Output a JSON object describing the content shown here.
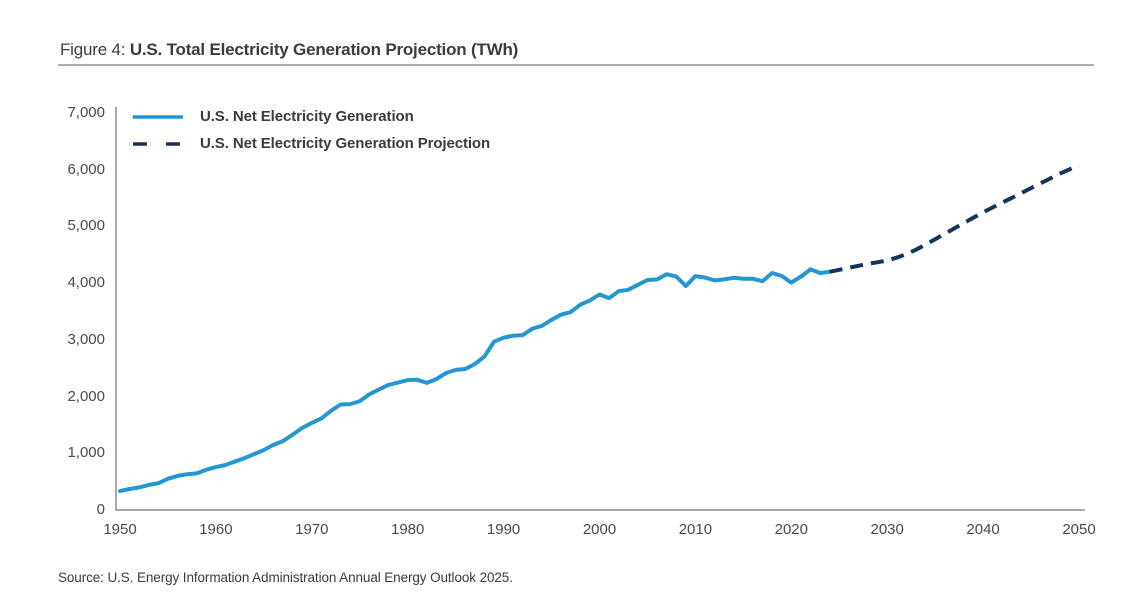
{
  "title": {
    "prefix": "Figure 4: ",
    "main": "U.S. Total Electricity Generation Projection (TWh)"
  },
  "source": "Source: U.S. Energy Information Administration Annual Energy Outlook 2025.",
  "colors": {
    "historical_line": "#2397d4",
    "projection_line": "#14345b",
    "axis_line": "#a9a9a9",
    "tick_text": "#4a4a49",
    "title_text": "#3c3c3b"
  },
  "chart_data": {
    "type": "line",
    "title": "Figure 4: U.S. Total Electricity Generation Projection (TWh)",
    "xlabel": "",
    "ylabel": "",
    "xlim": [
      1950,
      2050
    ],
    "ylim": [
      0,
      7000
    ],
    "grid": false,
    "legend_position": "top-left-inside",
    "xtick_values": [
      1950,
      1960,
      1970,
      1980,
      1990,
      2000,
      2010,
      2020,
      2030,
      2040,
      2050
    ],
    "xtick_labels": [
      "1950",
      "1960",
      "1970",
      "1980",
      "1990",
      "2000",
      "2010",
      "2020",
      "2030",
      "2040",
      "2050"
    ],
    "ytick_values": [
      0,
      1000,
      2000,
      3000,
      4000,
      5000,
      6000,
      7000
    ],
    "ytick_labels": [
      "0",
      "1,000",
      "2,000",
      "3,000",
      "4,000",
      "5,000",
      "6,000",
      "7,000"
    ],
    "series": [
      {
        "name": "U.S. Net Electricity Generation",
        "style": "solid",
        "color": "#2397d4",
        "x": [
          1950,
          1951,
          1952,
          1953,
          1954,
          1955,
          1956,
          1957,
          1958,
          1959,
          1960,
          1961,
          1962,
          1963,
          1964,
          1965,
          1966,
          1967,
          1968,
          1969,
          1970,
          1971,
          1972,
          1973,
          1974,
          1975,
          1976,
          1977,
          1978,
          1979,
          1980,
          1981,
          1982,
          1983,
          1984,
          1985,
          1986,
          1987,
          1988,
          1989,
          1990,
          1991,
          1992,
          1993,
          1994,
          1995,
          1996,
          1997,
          1998,
          1999,
          2000,
          2001,
          2002,
          2003,
          2004,
          2005,
          2006,
          2007,
          2008,
          2009,
          2010,
          2011,
          2012,
          2013,
          2014,
          2015,
          2016,
          2017,
          2018,
          2019,
          2020,
          2021,
          2022,
          2023,
          2024
        ],
        "y": [
          334,
          371,
          399,
          443,
          472,
          550,
          601,
          632,
          645,
          710,
          756,
          794,
          855,
          917,
          987,
          1058,
          1147,
          1214,
          1329,
          1445,
          1535,
          1615,
          1750,
          1861,
          1867,
          1921,
          2038,
          2124,
          2206,
          2247,
          2290,
          2295,
          2241,
          2310,
          2416,
          2470,
          2487,
          2572,
          2704,
          2967,
          3038,
          3074,
          3084,
          3197,
          3248,
          3353,
          3444,
          3492,
          3620,
          3695,
          3802,
          3737,
          3858,
          3883,
          3971,
          4055,
          4065,
          4157,
          4119,
          3950,
          4125,
          4100,
          4048,
          4066,
          4094,
          4078,
          4077,
          4034,
          4178,
          4127,
          4009,
          4115,
          4243,
          4178,
          4200
        ]
      },
      {
        "name": "U.S. Net Electricity Generation Projection",
        "style": "dashed",
        "color": "#14345b",
        "x": [
          2024,
          2025,
          2026,
          2027,
          2028,
          2029,
          2030,
          2031,
          2032,
          2033,
          2034,
          2035,
          2036,
          2037,
          2038,
          2039,
          2040,
          2041,
          2042,
          2043,
          2044,
          2045,
          2046,
          2047,
          2048,
          2049,
          2050
        ],
        "y": [
          4200,
          4235,
          4270,
          4305,
          4340,
          4370,
          4400,
          4450,
          4510,
          4590,
          4680,
          4775,
          4870,
          4965,
          5060,
          5155,
          5250,
          5335,
          5420,
          5505,
          5590,
          5675,
          5760,
          5845,
          5930,
          6005,
          6080
        ]
      }
    ]
  }
}
